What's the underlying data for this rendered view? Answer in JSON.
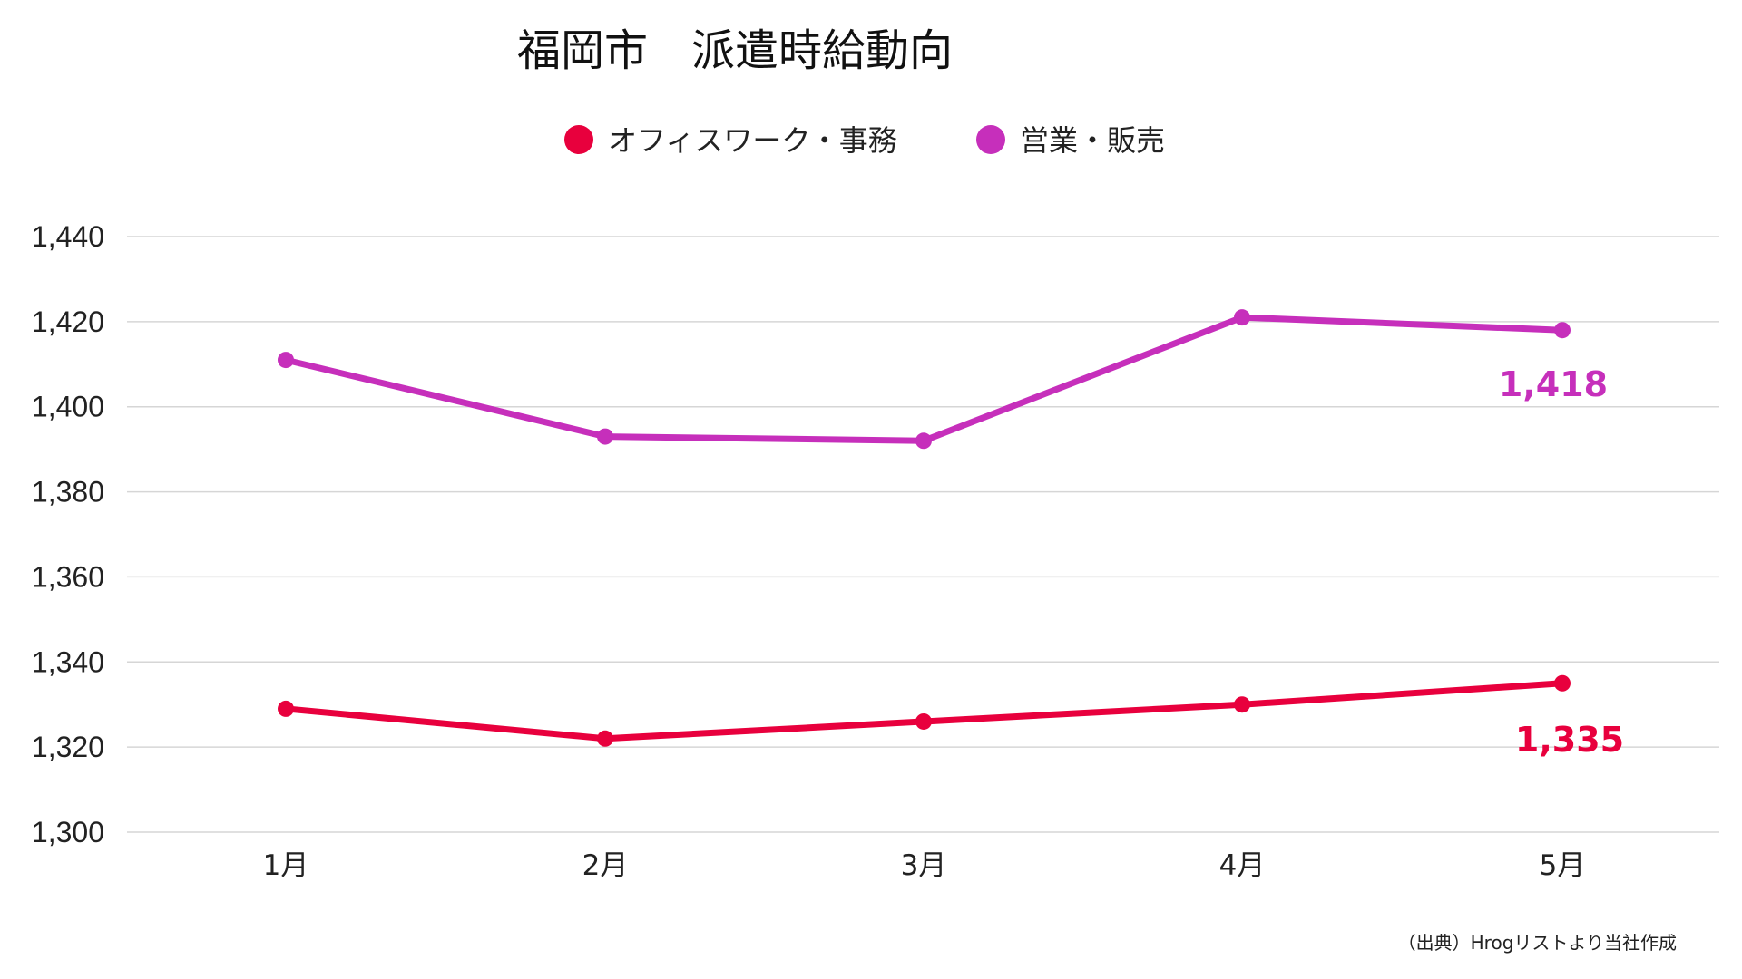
{
  "chart_data": {
    "type": "line",
    "title": "福岡市　派遣時給動向",
    "categories": [
      "1月",
      "2月",
      "3月",
      "4月",
      "5月"
    ],
    "ylim": [
      1300,
      1440
    ],
    "yticks": [
      "1,300",
      "1,320",
      "1,340",
      "1,360",
      "1,380",
      "1,400",
      "1,420",
      "1,440"
    ],
    "ytick_values": [
      1300,
      1320,
      1340,
      1360,
      1380,
      1400,
      1420,
      1440
    ],
    "grid": true,
    "legend_position": "top-center",
    "series": [
      {
        "name": "オフィスワーク・事務",
        "color": "#e8003d",
        "values": [
          1329,
          1322,
          1326,
          1330,
          1335
        ],
        "last_label": "1,335"
      },
      {
        "name": "営業・販売",
        "color": "#c62fbb",
        "values": [
          1411,
          1393,
          1392,
          1421,
          1418
        ],
        "last_label": "1,418"
      }
    ],
    "source": "（出典）Hrogリストより当社作成"
  }
}
